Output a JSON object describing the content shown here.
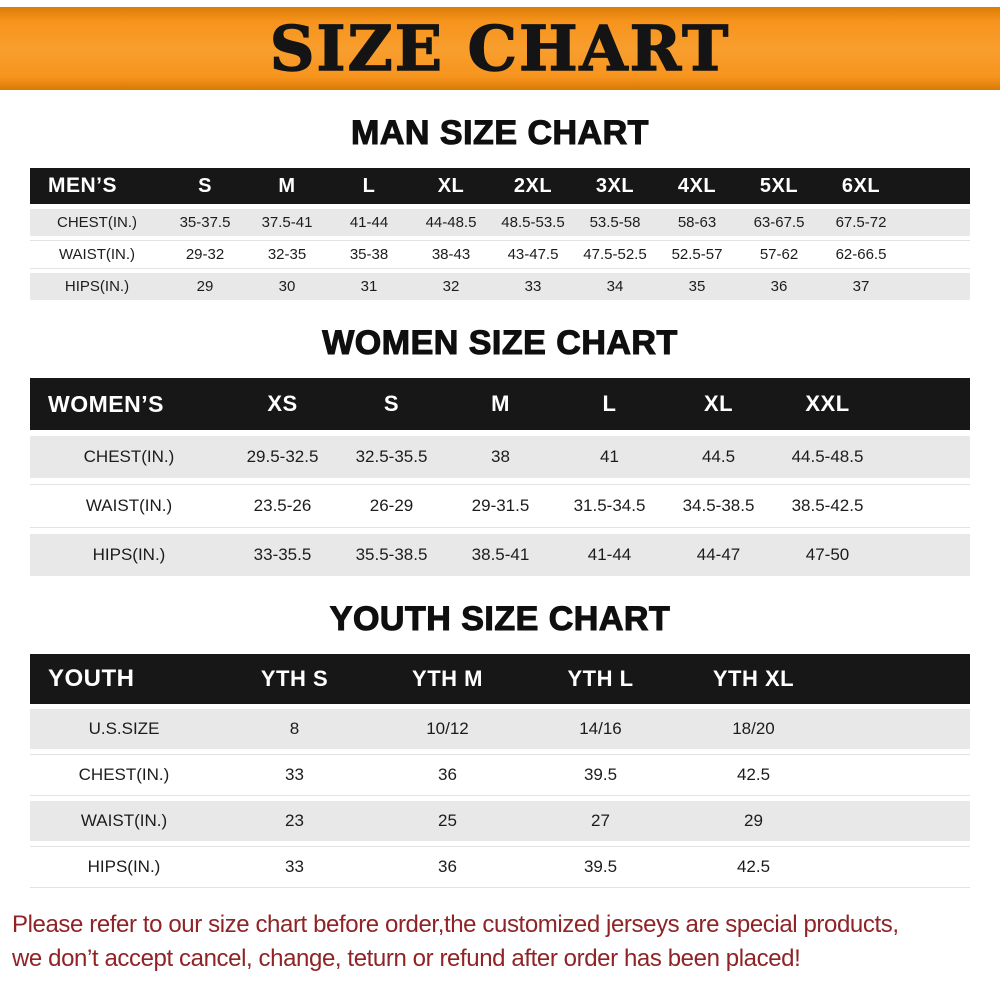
{
  "banner": {
    "title": "SIZE CHART"
  },
  "colors": {
    "banner-orange": "#f7941d",
    "table-header-bg": "#171717",
    "row-shade": "#e8e8e8",
    "notice-red": "#8f2326"
  },
  "sections": [
    {
      "id": "men",
      "heading": "MAN SIZE CHART",
      "table": {
        "header": [
          "MEN’S",
          "S",
          "M",
          "L",
          "XL",
          "2XL",
          "3XL",
          "4XL",
          "5XL",
          "6XL"
        ],
        "rows": [
          [
            "CHEST(IN.)",
            "35-37.5",
            "37.5-41",
            "41-44",
            "44-48.5",
            "48.5-53.5",
            "53.5-58",
            "58-63",
            "63-67.5",
            "67.5-72"
          ],
          [
            "WAIST(IN.)",
            "29-32",
            "32-35",
            "35-38",
            "38-43",
            "43-47.5",
            "47.5-52.5",
            "52.5-57",
            "57-62",
            "62-66.5"
          ],
          [
            "HIPS(IN.)",
            "29",
            "30",
            "31",
            "32",
            "33",
            "34",
            "35",
            "36",
            "37"
          ]
        ]
      }
    },
    {
      "id": "women",
      "heading": "WOMEN SIZE CHART",
      "table": {
        "header": [
          "WOMEN’S",
          "XS",
          "S",
          "M",
          "L",
          "XL",
          "XXL"
        ],
        "rows": [
          [
            "CHEST(IN.)",
            "29.5-32.5",
            "32.5-35.5",
            "38",
            "41",
            "44.5",
            "44.5-48.5"
          ],
          [
            "WAIST(IN.)",
            "23.5-26",
            "26-29",
            "29-31.5",
            "31.5-34.5",
            "34.5-38.5",
            "38.5-42.5"
          ],
          [
            "HIPS(IN.)",
            "33-35.5",
            "35.5-38.5",
            "38.5-41",
            "41-44",
            "44-47",
            "47-50"
          ]
        ]
      }
    },
    {
      "id": "youth",
      "heading": "YOUTH SIZE CHART",
      "table": {
        "header": [
          "YOUTH",
          "YTH S",
          "YTH M",
          "YTH L",
          "YTH XL"
        ],
        "rows": [
          [
            "U.S.SIZE",
            "8",
            "10/12",
            "14/16",
            "18/20"
          ],
          [
            "CHEST(IN.)",
            "33",
            "36",
            "39.5",
            "42.5"
          ],
          [
            "WAIST(IN.)",
            "23",
            "25",
            "27",
            "29"
          ],
          [
            "HIPS(IN.)",
            "33",
            "36",
            "39.5",
            "42.5"
          ]
        ]
      }
    }
  ],
  "notice": {
    "lines": [
      "Please refer to our size chart before order,the customized jerseys are special products,",
      "we don’t accept cancel, change, teturn or refund after order has been placed!"
    ]
  }
}
